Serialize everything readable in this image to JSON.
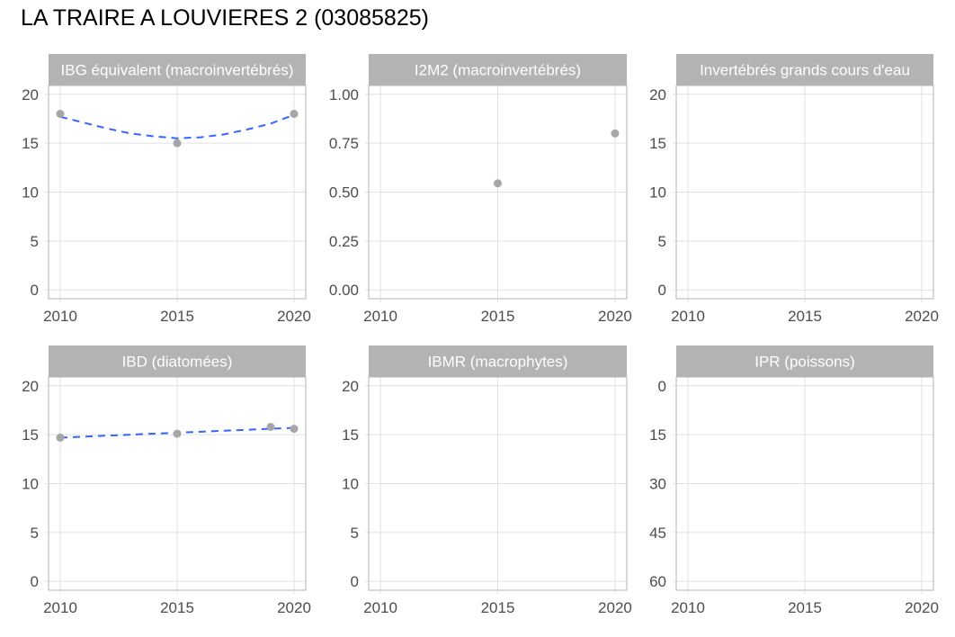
{
  "page": {
    "title": "LA TRAIRE A LOUVIERES 2 (03085825)"
  },
  "colors": {
    "strip_background": "#b3b3b3",
    "strip_text": "#ffffff",
    "panel_border": "#b3b3b3",
    "grid": "#e0e0e0",
    "point": "#a6a6a6",
    "trend_line": "#3366ff",
    "axis_text": "#4d4d4d"
  },
  "chart_data": [
    {
      "type": "scatter",
      "title": "IBG équivalent (macroinvertébrés)",
      "xlim": [
        2009.5,
        2020.5
      ],
      "ylim": [
        -0.9,
        20.9
      ],
      "x_ticks": [
        2010,
        2015,
        2020
      ],
      "x_tick_labels": [
        "2010",
        "2015",
        "2020"
      ],
      "y_ticks": [
        0,
        5,
        10,
        15,
        20
      ],
      "y_tick_labels": [
        "0",
        "5",
        "10",
        "15",
        "20"
      ],
      "y_reversed": false,
      "points": [
        {
          "x": 2010,
          "y": 18
        },
        {
          "x": 2015,
          "y": 15
        },
        {
          "x": 2020,
          "y": 18
        }
      ],
      "trend": {
        "style": "dashed",
        "x": [
          2010,
          2011,
          2012,
          2013,
          2014,
          2015,
          2016,
          2017,
          2018,
          2019,
          2020
        ],
        "y": [
          17.7,
          17.1,
          16.5,
          16.0,
          15.7,
          15.5,
          15.6,
          15.9,
          16.4,
          17.0,
          17.9
        ]
      }
    },
    {
      "type": "scatter",
      "title": "I2M2 (macroinvertébrés)",
      "xlim": [
        2009.5,
        2020.5
      ],
      "ylim": [
        -0.045,
        1.045
      ],
      "x_ticks": [
        2010,
        2015,
        2020
      ],
      "x_tick_labels": [
        "2010",
        "2015",
        "2020"
      ],
      "y_ticks": [
        0,
        0.25,
        0.5,
        0.75,
        1
      ],
      "y_tick_labels": [
        "0.00",
        "0.25",
        "0.50",
        "0.75",
        "1.00"
      ],
      "y_reversed": false,
      "points": [
        {
          "x": 2015,
          "y": 0.545
        },
        {
          "x": 2020,
          "y": 0.8
        }
      ]
    },
    {
      "type": "scatter",
      "title": "Invertébrés grands cours d'eau",
      "xlim": [
        2009.5,
        2020.5
      ],
      "ylim": [
        -0.9,
        20.9
      ],
      "x_ticks": [
        2010,
        2015,
        2020
      ],
      "x_tick_labels": [
        "2010",
        "2015",
        "2020"
      ],
      "y_ticks": [
        0,
        5,
        10,
        15,
        20
      ],
      "y_tick_labels": [
        "0",
        "5",
        "10",
        "15",
        "20"
      ],
      "y_reversed": false,
      "points": []
    },
    {
      "type": "scatter",
      "title": "IBD (diatomées)",
      "xlim": [
        2009.5,
        2020.5
      ],
      "ylim": [
        -0.9,
        20.9
      ],
      "x_ticks": [
        2010,
        2015,
        2020
      ],
      "x_tick_labels": [
        "2010",
        "2015",
        "2020"
      ],
      "y_ticks": [
        0,
        5,
        10,
        15,
        20
      ],
      "y_tick_labels": [
        "0",
        "5",
        "10",
        "15",
        "20"
      ],
      "y_reversed": false,
      "points": [
        {
          "x": 2010,
          "y": 14.7
        },
        {
          "x": 2015,
          "y": 15.1
        },
        {
          "x": 2019,
          "y": 15.8
        },
        {
          "x": 2020,
          "y": 15.6
        }
      ],
      "trend": {
        "style": "dashed",
        "x": [
          2010,
          2020
        ],
        "y": [
          14.7,
          15.7
        ]
      }
    },
    {
      "type": "scatter",
      "title": "IBMR (macrophytes)",
      "xlim": [
        2009.5,
        2020.5
      ],
      "ylim": [
        -0.9,
        20.9
      ],
      "x_ticks": [
        2010,
        2015,
        2020
      ],
      "x_tick_labels": [
        "2010",
        "2015",
        "2020"
      ],
      "y_ticks": [
        0,
        5,
        10,
        15,
        20
      ],
      "y_tick_labels": [
        "0",
        "5",
        "10",
        "15",
        "20"
      ],
      "y_reversed": false,
      "points": []
    },
    {
      "type": "scatter",
      "title": "IPR (poissons)",
      "xlim": [
        2009.5,
        2020.5
      ],
      "ylim": [
        -2.7,
        62.7
      ],
      "x_ticks": [
        2010,
        2015,
        2020
      ],
      "x_tick_labels": [
        "2010",
        "2015",
        "2020"
      ],
      "y_ticks": [
        0,
        15,
        30,
        45,
        60
      ],
      "y_tick_labels": [
        "0",
        "15",
        "30",
        "45",
        "60"
      ],
      "y_reversed": true,
      "points": []
    }
  ]
}
